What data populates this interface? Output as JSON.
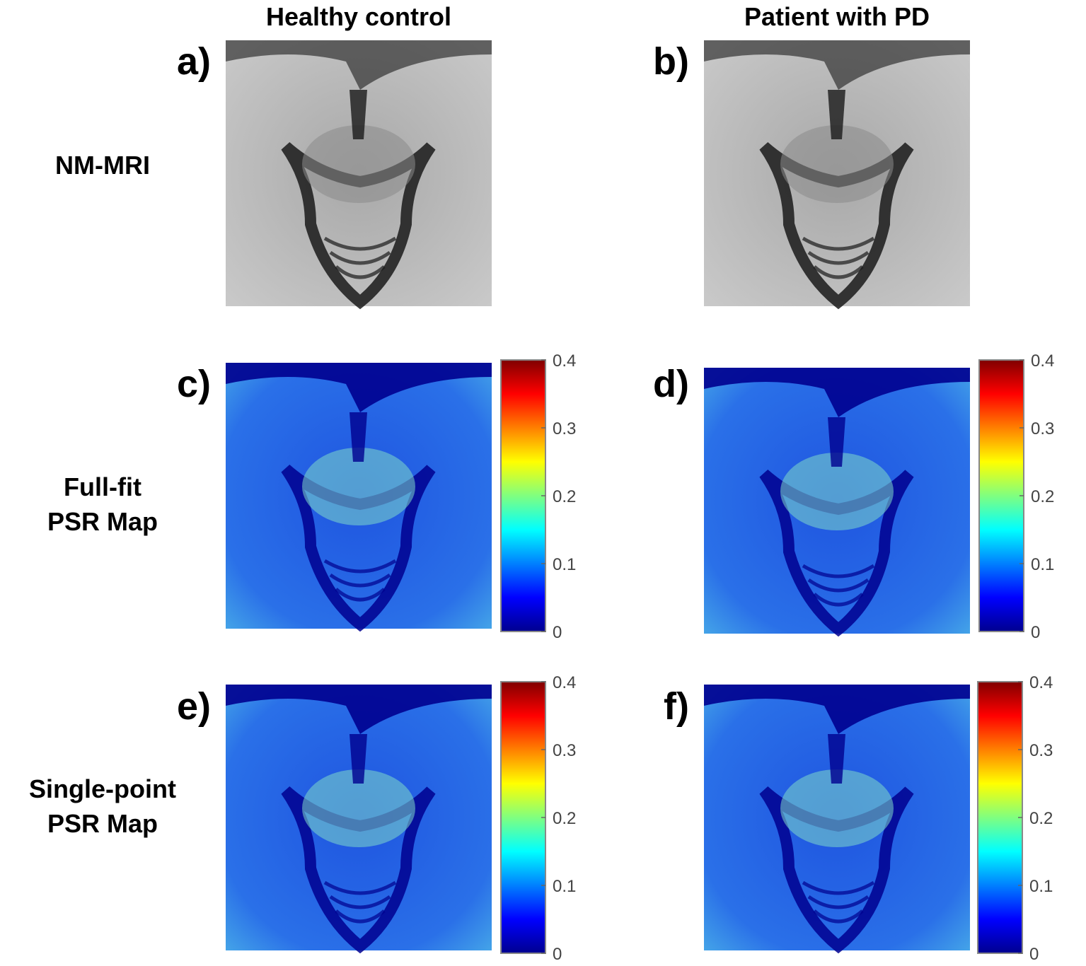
{
  "columns": [
    "Healthy control",
    "Patient with PD"
  ],
  "rows": [
    [
      "NM-MRI"
    ],
    [
      "Full-fit",
      "PSR Map"
    ],
    [
      "Single-point",
      "PSR Map"
    ]
  ],
  "panels": [
    "a)",
    "b)",
    "c)",
    "d)",
    "e)",
    "f)"
  ],
  "colorbar": {
    "clim": [
      0,
      0.4
    ],
    "ticks": [
      0,
      0.1,
      0.2,
      0.3,
      0.4
    ]
  }
}
